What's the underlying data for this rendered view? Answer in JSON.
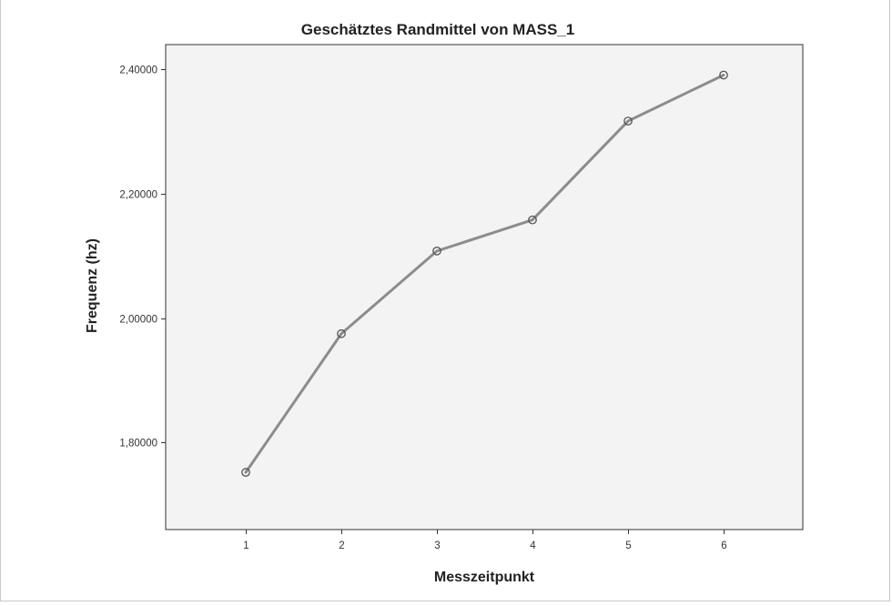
{
  "chart_data": {
    "type": "line",
    "title": "Geschätztes Randmittel von MASS_1",
    "xlabel": "Messzeitpunkt",
    "ylabel": "Frequenz (hz)",
    "categories": [
      "1",
      "2",
      "3",
      "4",
      "5",
      "6"
    ],
    "series": [
      {
        "values": [
          1.752,
          1.975,
          2.108,
          2.158,
          2.317,
          2.391
        ],
        "color": "#8c8c8c"
      }
    ],
    "ylim": [
      1.66,
      2.44
    ],
    "yticks": [
      1.8,
      2.0,
      2.2,
      2.4
    ],
    "ytick_labels": [
      "1,80000",
      "2,00000",
      "2,20000",
      "2,40000"
    ],
    "grid": false,
    "legend": "none",
    "plot_background": "#f3f3f3",
    "axis_color": "#333333"
  }
}
